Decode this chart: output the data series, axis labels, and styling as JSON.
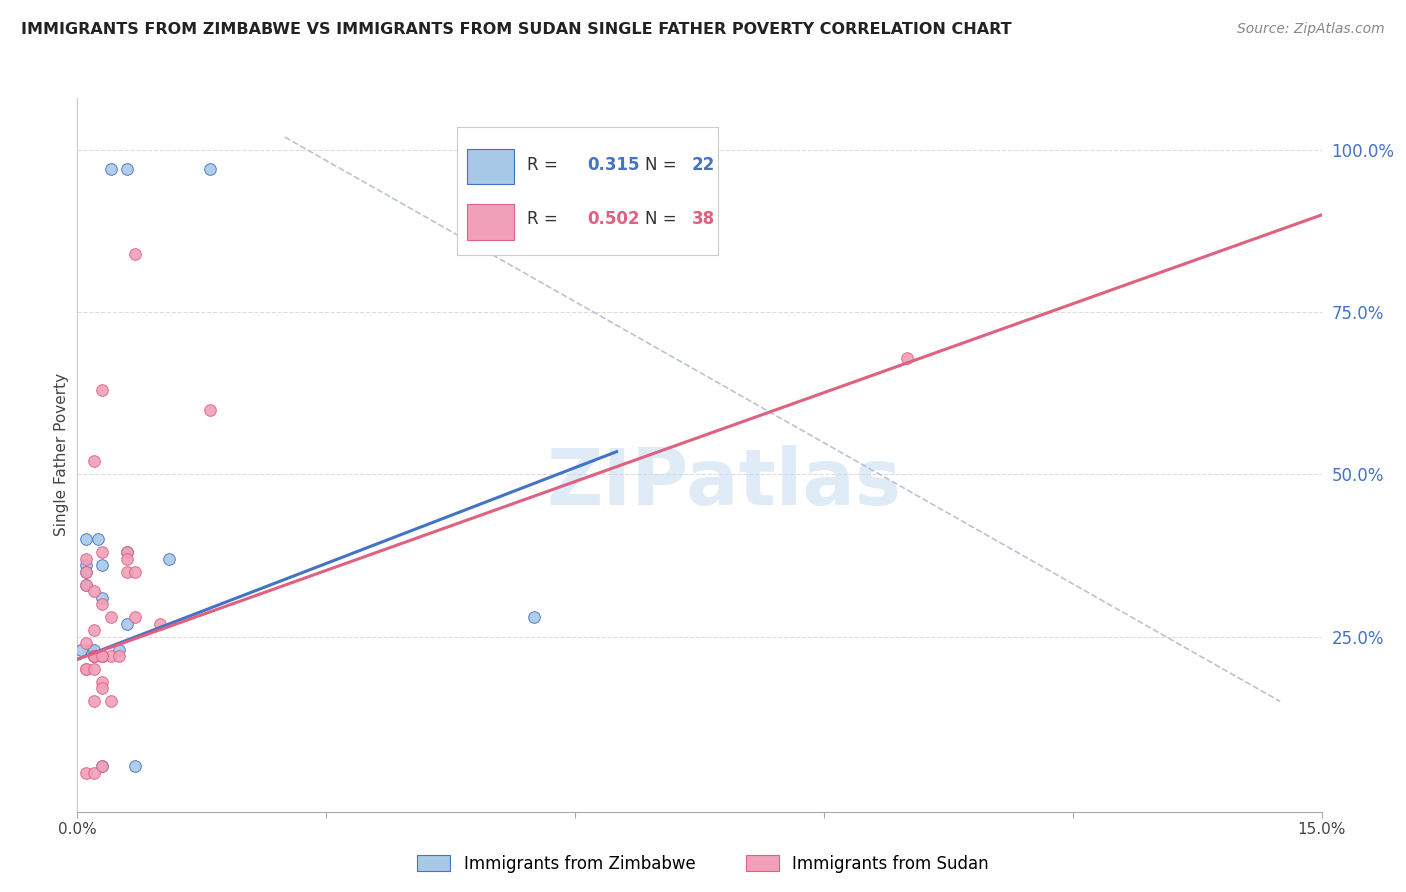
{
  "title": "IMMIGRANTS FROM ZIMBABWE VS IMMIGRANTS FROM SUDAN SINGLE FATHER POVERTY CORRELATION CHART",
  "source": "Source: ZipAtlas.com",
  "ylabel": "Single Father Poverty",
  "xlim": [
    0.0,
    0.15
  ],
  "ylim": [
    -0.02,
    1.08
  ],
  "yticks_right": [
    0.25,
    0.5,
    0.75,
    1.0
  ],
  "ytick_right_labels": [
    "25.0%",
    "50.0%",
    "75.0%",
    "100.0%"
  ],
  "watermark": "ZIPatlas",
  "color_zimbabwe": "#a8c8e8",
  "color_sudan": "#f0a0b8",
  "color_blue_line": "#4472c4",
  "color_pink_line": "#e06080",
  "color_diag_line": "#b8c4d4",
  "color_right_axis": "#4472c4",
  "color_title": "#222222",
  "color_source": "#888888",
  "zimbabwe_x": [
    0.004,
    0.006,
    0.016,
    0.011,
    0.0025,
    0.001,
    0.001,
    0.0015,
    0.0005,
    0.002,
    0.003,
    0.003,
    0.005,
    0.003,
    0.002,
    0.001,
    0.006,
    0.007,
    0.003,
    0.001,
    0.006,
    0.055
  ],
  "zimbabwe_y": [
    0.97,
    0.97,
    0.97,
    0.37,
    0.4,
    0.36,
    0.33,
    0.23,
    0.23,
    0.23,
    0.31,
    0.36,
    0.23,
    0.22,
    0.22,
    0.35,
    0.38,
    0.05,
    0.05,
    0.4,
    0.27,
    0.28
  ],
  "sudan_x": [
    0.007,
    0.003,
    0.016,
    0.002,
    0.003,
    0.001,
    0.001,
    0.001,
    0.002,
    0.003,
    0.004,
    0.007,
    0.01,
    0.002,
    0.001,
    0.002,
    0.003,
    0.004,
    0.005,
    0.006,
    0.003,
    0.002,
    0.002,
    0.003,
    0.1,
    0.001,
    0.001,
    0.002,
    0.006,
    0.006,
    0.007,
    0.001,
    0.002,
    0.003,
    0.002,
    0.003,
    0.004,
    0.003
  ],
  "sudan_y": [
    0.84,
    0.63,
    0.6,
    0.52,
    0.38,
    0.37,
    0.35,
    0.33,
    0.32,
    0.3,
    0.28,
    0.28,
    0.27,
    0.26,
    0.24,
    0.22,
    0.22,
    0.22,
    0.22,
    0.38,
    0.22,
    0.22,
    0.22,
    0.22,
    0.68,
    0.2,
    0.2,
    0.2,
    0.35,
    0.37,
    0.35,
    0.04,
    0.04,
    0.05,
    0.15,
    0.18,
    0.15,
    0.17
  ],
  "blue_line_x": [
    0.0,
    0.065
  ],
  "blue_line_y": [
    0.215,
    0.535
  ],
  "pink_line_x": [
    0.0,
    0.15
  ],
  "pink_line_y": [
    0.215,
    0.9
  ],
  "diag_line_x": [
    0.025,
    0.145
  ],
  "diag_line_y": [
    1.02,
    0.15
  ],
  "grid_color": "#dddddd",
  "background_color": "#ffffff",
  "marker_size": 70,
  "marker_edge_width": 0.7
}
